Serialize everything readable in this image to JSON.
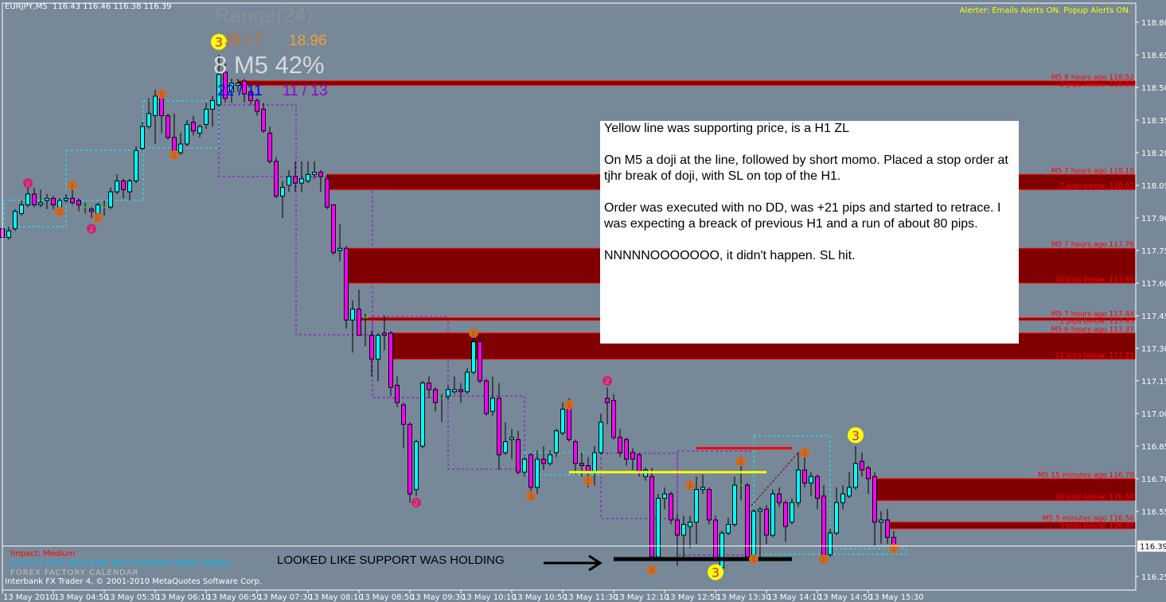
{
  "header": {
    "symbol_tf": "EURJPY,M5",
    "ohlc": "116.43 116.46 116.38 116.39"
  },
  "alerter": "Alerter:  Emails Alerts ON.  Popup Alerts ON.",
  "indicator": {
    "range_label": "Range(24)",
    "ratio1": "35 / 7",
    "value1": "18.96",
    "main": "8 M5 42%",
    "ratio2": "22 / 11",
    "ratio3": "11 / 13"
  },
  "note": {
    "paragraphs": [
      "Yellow line was supporting price,  is a H1 ZL",
      "On M5 a doji at the line, followed by short momo. Placed a stop order at tjhr break of doji, with SL on top of the H1.",
      "Order was executed with no DD, was +21 pips and started to retrace. I was expecting a breack of previous H1 and a run of about 80 pips.",
      "NNNNNOOOOOOO, it didn't happen. SL hit."
    ]
  },
  "support_text": "LOOKED LIKE SUPPORT WAS HOLDING",
  "footer": {
    "impact": "Impact: Medium",
    "event": "3 hrs 31 mins since EUR: Buba President Weber Speaks",
    "calendar": "FOREX FACTORY CALENDAR",
    "copyright": "Interbank FX Trader 4, © 2001-2010 MetaQuotes Software Corp."
  },
  "colors": {
    "background": "#778899",
    "bull": "#00ffff",
    "bear": "#ff00ff",
    "zone": "#800000",
    "zone_text": "#ff0000",
    "yellow_line": "#ffff00",
    "red_line": "#ff0000",
    "marker1": "#d2691e",
    "marker2": "#cc2277",
    "marker3": "#ffff00"
  },
  "chart_data": {
    "type": "candlestick",
    "symbol": "EURJPY",
    "timeframe": "M5",
    "ylim": [
      116.2,
      118.88
    ],
    "current_price": "116.39",
    "y_ticks": [
      "118.80",
      "118.65",
      "118.50",
      "118.35",
      "118.20",
      "118.05",
      "117.90",
      "117.75",
      "117.60",
      "117.45",
      "117.30",
      "117.15",
      "117.00",
      "116.85",
      "116.70",
      "116.55",
      "116.25"
    ],
    "x_ticks": [
      "13 May 2010",
      "13 May 04:50",
      "13 May 05:30",
      "13 May 06:10",
      "13 May 06:50",
      "13 May 07:30",
      "13 May 08:10",
      "13 May 08:50",
      "13 May 09:30",
      "13 May 10:10",
      "13 May 10:50",
      "13 May 11:30",
      "13 May 12:10",
      "13 May 12:50",
      "13 May 13:30",
      "13 May 14:10",
      "13 May 14:50",
      "13 May 15:30"
    ],
    "ohlc": [
      [
        117.85,
        117.86,
        117.79,
        117.81
      ],
      [
        117.81,
        117.86,
        117.8,
        117.84
      ],
      [
        117.85,
        117.94,
        117.84,
        117.93
      ],
      [
        117.92,
        117.98,
        117.91,
        117.96
      ],
      [
        117.96,
        118.04,
        117.95,
        118.01
      ],
      [
        118.01,
        118.04,
        117.95,
        117.96
      ],
      [
        117.96,
        118.03,
        117.95,
        117.97
      ],
      [
        117.98,
        118.01,
        117.94,
        117.99
      ],
      [
        117.99,
        118.0,
        117.94,
        117.96
      ],
      [
        117.95,
        117.99,
        117.94,
        117.98
      ],
      [
        117.98,
        118.01,
        117.97,
        117.99
      ],
      [
        117.99,
        118.03,
        117.96,
        117.97
      ],
      [
        117.98,
        117.99,
        117.93,
        117.96
      ],
      [
        117.95,
        117.97,
        117.92,
        117.95
      ],
      [
        117.94,
        117.95,
        117.9,
        117.93
      ],
      [
        117.92,
        117.97,
        117.91,
        117.96
      ],
      [
        117.95,
        117.98,
        117.91,
        117.95
      ],
      [
        117.95,
        118.04,
        117.94,
        118.02
      ],
      [
        118.02,
        118.1,
        118.01,
        118.07
      ],
      [
        118.07,
        118.08,
        117.99,
        118.03
      ],
      [
        118.02,
        118.08,
        117.98,
        118.07
      ],
      [
        118.07,
        118.23,
        118.06,
        118.21
      ],
      [
        118.22,
        118.34,
        118.21,
        118.32
      ],
      [
        118.32,
        118.45,
        118.31,
        118.38
      ],
      [
        118.37,
        118.49,
        118.24,
        118.46
      ],
      [
        118.46,
        118.48,
        118.29,
        118.37
      ],
      [
        118.37,
        118.38,
        118.26,
        118.27
      ],
      [
        118.27,
        118.38,
        118.2,
        118.21
      ],
      [
        118.2,
        118.29,
        118.19,
        118.24
      ],
      [
        118.24,
        118.35,
        118.23,
        118.33
      ],
      [
        118.34,
        118.37,
        118.28,
        118.3
      ],
      [
        118.29,
        118.33,
        118.27,
        118.32
      ],
      [
        118.33,
        118.43,
        118.31,
        118.4
      ],
      [
        118.4,
        118.46,
        118.32,
        118.44
      ],
      [
        118.42,
        118.65,
        118.41,
        118.56
      ],
      [
        118.57,
        118.61,
        118.43,
        118.45
      ],
      [
        118.48,
        118.54,
        118.43,
        118.52
      ],
      [
        118.51,
        118.54,
        118.48,
        118.52
      ],
      [
        118.53,
        118.54,
        118.43,
        118.47
      ],
      [
        118.48,
        118.49,
        118.42,
        118.44
      ],
      [
        118.44,
        118.45,
        118.37,
        118.39
      ],
      [
        118.4,
        118.43,
        118.29,
        118.3
      ],
      [
        118.29,
        118.32,
        118.15,
        118.16
      ],
      [
        118.16,
        118.18,
        117.99,
        118.0
      ],
      [
        118.0,
        118.07,
        117.9,
        118.04
      ],
      [
        118.05,
        118.12,
        118.02,
        118.09
      ],
      [
        118.09,
        118.16,
        118.02,
        118.06
      ],
      [
        118.06,
        118.16,
        118.02,
        118.08
      ],
      [
        118.07,
        118.16,
        118.06,
        118.1
      ],
      [
        118.1,
        118.16,
        118.08,
        118.11
      ],
      [
        118.11,
        118.12,
        118.02,
        118.09
      ],
      [
        118.08,
        118.1,
        117.94,
        117.95
      ],
      [
        117.96,
        117.96,
        117.73,
        117.74
      ],
      [
        117.75,
        117.87,
        117.7,
        117.76
      ],
      [
        117.76,
        117.77,
        117.39,
        117.43
      ],
      [
        117.43,
        117.52,
        117.28,
        117.48
      ],
      [
        117.48,
        117.57,
        117.36,
        117.36
      ],
      [
        117.44,
        117.46,
        117.31,
        117.44
      ],
      [
        117.36,
        117.38,
        117.17,
        117.25
      ],
      [
        117.25,
        117.37,
        117.15,
        117.36
      ],
      [
        117.37,
        117.45,
        117.29,
        117.36
      ],
      [
        117.37,
        117.38,
        117.08,
        117.12
      ],
      [
        117.13,
        117.17,
        117.03,
        117.05
      ],
      [
        117.04,
        117.05,
        116.84,
        116.95
      ],
      [
        116.95,
        116.96,
        116.59,
        116.63
      ],
      [
        116.65,
        116.88,
        116.62,
        116.87
      ],
      [
        116.85,
        117.15,
        116.84,
        117.14
      ],
      [
        117.14,
        117.17,
        117.07,
        117.11
      ],
      [
        117.11,
        117.12,
        117.01,
        117.05
      ],
      [
        117.07,
        117.09,
        116.96,
        117.07
      ],
      [
        117.08,
        117.13,
        117.06,
        117.11
      ],
      [
        117.1,
        117.17,
        117.09,
        117.11
      ],
      [
        117.11,
        117.14,
        117.05,
        117.1
      ],
      [
        117.1,
        117.21,
        117.09,
        117.19
      ],
      [
        117.19,
        117.37,
        117.18,
        117.33
      ],
      [
        117.33,
        117.35,
        117.14,
        117.15
      ],
      [
        117.15,
        117.16,
        116.99,
        117.0
      ],
      [
        117.01,
        117.17,
        116.99,
        117.07
      ],
      [
        117.07,
        117.14,
        116.74,
        116.81
      ],
      [
        116.82,
        116.96,
        116.81,
        116.87
      ],
      [
        116.88,
        116.93,
        116.79,
        116.89
      ],
      [
        116.88,
        116.92,
        116.72,
        116.73
      ],
      [
        116.73,
        116.8,
        116.71,
        116.79
      ],
      [
        116.81,
        116.82,
        116.61,
        116.66
      ],
      [
        116.66,
        116.83,
        116.63,
        116.79
      ],
      [
        116.79,
        116.85,
        116.74,
        116.77
      ],
      [
        116.77,
        116.83,
        116.76,
        116.81
      ],
      [
        116.82,
        116.93,
        116.8,
        116.92
      ],
      [
        116.91,
        117.05,
        116.9,
        117.02
      ],
      [
        117.05,
        117.07,
        116.87,
        116.88
      ],
      [
        116.87,
        116.88,
        116.72,
        116.77
      ],
      [
        116.77,
        116.82,
        116.71,
        116.76
      ],
      [
        116.76,
        116.8,
        116.66,
        116.73
      ],
      [
        116.73,
        116.85,
        116.67,
        116.82
      ],
      [
        116.82,
        117.0,
        116.81,
        116.96
      ],
      [
        117.07,
        117.12,
        116.95,
        117.05
      ],
      [
        117.06,
        117.09,
        116.88,
        116.89
      ],
      [
        116.89,
        116.93,
        116.8,
        116.82
      ],
      [
        116.88,
        116.89,
        116.76,
        116.79
      ],
      [
        116.82,
        116.84,
        116.74,
        116.79
      ],
      [
        116.81,
        116.82,
        116.71,
        116.73
      ],
      [
        116.71,
        116.75,
        116.69,
        116.74
      ],
      [
        116.71,
        116.75,
        116.33,
        116.34
      ],
      [
        116.34,
        116.63,
        116.33,
        116.61
      ],
      [
        116.61,
        116.66,
        116.56,
        116.63
      ],
      [
        116.63,
        116.64,
        116.49,
        116.51
      ],
      [
        116.51,
        116.54,
        116.3,
        116.44
      ],
      [
        116.44,
        116.53,
        116.32,
        116.49
      ],
      [
        116.48,
        116.53,
        116.38,
        116.5
      ],
      [
        116.5,
        116.71,
        116.4,
        116.65
      ],
      [
        116.65,
        116.72,
        116.63,
        116.66
      ],
      [
        116.65,
        116.66,
        116.49,
        116.51
      ],
      [
        116.51,
        116.53,
        116.32,
        116.33
      ],
      [
        116.29,
        116.46,
        116.28,
        116.45
      ],
      [
        116.45,
        116.52,
        116.44,
        116.49
      ],
      [
        116.49,
        116.71,
        116.48,
        116.67
      ],
      [
        116.67,
        116.78,
        116.6,
        116.67
      ],
      [
        116.67,
        116.68,
        116.33,
        116.34
      ],
      [
        116.34,
        116.56,
        116.33,
        116.55
      ],
      [
        116.55,
        116.57,
        116.34,
        116.56
      ],
      [
        116.56,
        116.58,
        116.4,
        116.44
      ],
      [
        116.44,
        116.65,
        116.43,
        116.63
      ],
      [
        116.63,
        116.66,
        116.57,
        116.59
      ],
      [
        116.59,
        116.6,
        116.41,
        116.48
      ],
      [
        116.5,
        116.61,
        116.49,
        116.59
      ],
      [
        116.59,
        116.82,
        116.57,
        116.74
      ],
      [
        116.74,
        116.83,
        116.66,
        116.68
      ],
      [
        116.68,
        116.73,
        116.62,
        116.71
      ],
      [
        116.71,
        116.72,
        116.56,
        116.61
      ],
      [
        116.62,
        116.67,
        116.34,
        116.35
      ],
      [
        116.35,
        116.47,
        116.34,
        116.45
      ],
      [
        116.45,
        116.66,
        116.44,
        116.59
      ],
      [
        116.59,
        116.67,
        116.56,
        116.63
      ],
      [
        116.62,
        116.73,
        116.61,
        116.66
      ],
      [
        116.66,
        116.85,
        116.65,
        116.77
      ],
      [
        116.78,
        116.82,
        116.71,
        116.74
      ],
      [
        116.75,
        116.76,
        116.63,
        116.7
      ],
      [
        116.71,
        116.73,
        116.39,
        116.5
      ],
      [
        116.5,
        116.55,
        116.4,
        116.51
      ],
      [
        116.51,
        116.56,
        116.4,
        116.43
      ],
      [
        116.43,
        116.46,
        116.38,
        116.39
      ]
    ],
    "zones": [
      {
        "top": 118.53,
        "bottom": 118.51,
        "from_bar": 37,
        "label_top": "M5 8 hours ago 118.52",
        "label_bottom": "2 pips below: 118.50"
      },
      {
        "top": 118.1,
        "bottom": 118.03,
        "from_bar": 51,
        "label_top": "M5 7 hours ago 118.10",
        "label_bottom": "7 pips below: 118.03"
      },
      {
        "top": 117.76,
        "bottom": 117.6,
        "from_bar": 54,
        "label_top": "M5 7 hours ago 117.76",
        "label_bottom": "16 pips below: 117.60"
      },
      {
        "top": 117.44,
        "bottom": 117.43,
        "from_bar": 56,
        "label_top": "M5 7 hours ago 117.44",
        "label_bottom": "1 pips below: 117.43"
      },
      {
        "top": 117.37,
        "bottom": 117.25,
        "from_bar": 61,
        "label_top": "M5 6 hours ago 117.37",
        "label_bottom": "12 pips below: 117.25"
      },
      {
        "top": 116.7,
        "bottom": 116.6,
        "from_bar": 137,
        "label_top": "M5 15 minutes ago 116.70",
        "label_bottom": "10 pips below: 116.60"
      },
      {
        "top": 116.5,
        "bottom": 116.47,
        "from_bar": 139,
        "label_top": "M5 5 minutes ago 116.50",
        "label_bottom": "3 pips below: 116.47"
      }
    ],
    "lines": [
      {
        "name": "yellow-h1-zl-line",
        "price": 116.73,
        "from_bar": 89,
        "to_bar": 120,
        "color": "#ffff00"
      },
      {
        "name": "red-stop-loss-line",
        "price": 116.84,
        "from_bar": 109,
        "to_bar": 124,
        "color": "#ff0000"
      },
      {
        "name": "black-support-line",
        "price": 116.33,
        "from_bar": 96,
        "to_bar": 124,
        "color": "#000000"
      }
    ],
    "markers": [
      {
        "bar": 11,
        "price": 118.05,
        "label": "1"
      },
      {
        "bar": 9,
        "price": 117.93,
        "label": "1"
      },
      {
        "bar": 15,
        "price": 117.9,
        "label": "1"
      },
      {
        "bar": 27,
        "price": 118.19,
        "label": "1"
      },
      {
        "bar": 25,
        "price": 118.47,
        "label": "1"
      },
      {
        "bar": 74,
        "price": 117.37,
        "label": "1"
      },
      {
        "bar": 89,
        "price": 117.04,
        "label": "1"
      },
      {
        "bar": 92,
        "price": 116.69,
        "label": "1"
      },
      {
        "bar": 83,
        "price": 116.62,
        "label": "1"
      },
      {
        "bar": 108,
        "price": 116.67,
        "label": "1"
      },
      {
        "bar": 116,
        "price": 116.78,
        "label": "1"
      },
      {
        "bar": 126,
        "price": 116.82,
        "label": "1"
      },
      {
        "bar": 102,
        "price": 116.28,
        "label": "1"
      },
      {
        "bar": 118,
        "price": 116.33,
        "label": "1"
      },
      {
        "bar": 129,
        "price": 116.33,
        "label": "1"
      },
      {
        "bar": 140,
        "price": 116.38,
        "label": "1"
      },
      {
        "bar": 4,
        "price": 118.06,
        "label": "2"
      },
      {
        "bar": 14,
        "price": 117.85,
        "label": "2"
      },
      {
        "bar": 65,
        "price": 116.59,
        "label": "2"
      },
      {
        "bar": 95,
        "price": 117.15,
        "label": "2"
      },
      {
        "bar": 34,
        "price": 118.71,
        "label": "3"
      },
      {
        "bar": 134,
        "price": 116.9,
        "label": "3"
      },
      {
        "bar": 112,
        "price": 116.27,
        "label": "3"
      }
    ]
  }
}
